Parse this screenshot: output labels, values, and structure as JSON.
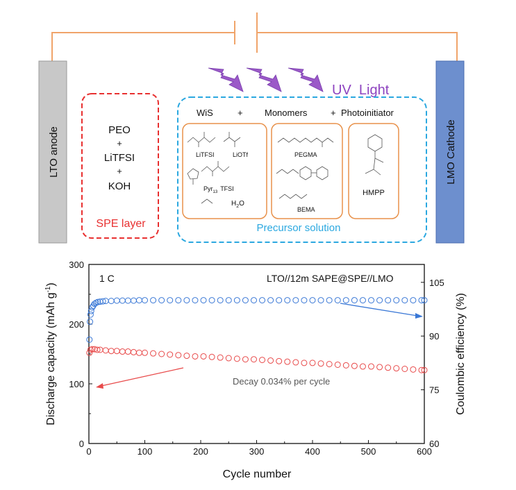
{
  "schematic": {
    "anode_label": "LTO anode",
    "cathode_label": "LMO Cathode",
    "uv_label": "UV  Light",
    "spe_box": {
      "lines": [
        "PEO",
        "+",
        "LiTFSI",
        "+",
        "KOH"
      ],
      "label": "SPE layer"
    },
    "precursor": {
      "header_wis": "WiS",
      "header_plus1": "+",
      "header_monomers": "Monomers",
      "header_plus2": "+",
      "header_photo": "Photoinitiator",
      "label": "Precursor solution",
      "wis_items": {
        "litfsi": "LiTFSI",
        "liotf": "LiOTf",
        "pyr_a": "Pyr",
        "pyr_sub": "13",
        "pyr_b": "TFSI",
        "h2o_a": "H",
        "h2o_sub": "2",
        "h2o_b": "O"
      },
      "monomer_items": {
        "pegma": "PEGMA",
        "bema": "BEMA"
      },
      "photo_items": {
        "hmpp": "HMPP"
      }
    },
    "colors": {
      "wire": "#f0a46a",
      "anode_fill": "#c8c8c8",
      "cathode_fill": "#6d8fce",
      "spe_border": "#e83030",
      "precursor_border": "#2ba8e0",
      "inner_box_border": "#e8914a",
      "uv": "#9b59c8"
    }
  },
  "chart_data": {
    "type": "scatter",
    "annotation_rate": "1 C",
    "annotation_cell": "LTO//12m SAPE@SPE//LMO",
    "annotation_decay": "Decay 0.034% per cycle",
    "xlabel": "Cycle number",
    "ylabel_left": "Discharge capacity (mAh g",
    "ylabel_left_sup": "-1",
    "ylabel_left_end": ")",
    "ylabel_right": "Coulombic efficiency (%)",
    "xlim": [
      0,
      600
    ],
    "ylim_left": [
      0,
      300
    ],
    "ylim_right": [
      60,
      110
    ],
    "x_ticks": [
      "0",
      "100",
      "200",
      "300",
      "400",
      "500",
      "600"
    ],
    "y_left_ticks": [
      "0",
      "100",
      "200",
      "300"
    ],
    "y_right_ticks": [
      "60",
      "75",
      "90",
      "105"
    ],
    "series": [
      {
        "axis": "left",
        "color": "#e84a4a",
        "x": [
          1,
          3,
          6,
          10,
          15,
          20,
          30,
          40,
          50,
          60,
          70,
          80,
          90,
          100,
          115,
          130,
          145,
          160,
          175,
          190,
          205,
          220,
          235,
          250,
          265,
          280,
          295,
          310,
          325,
          340,
          355,
          370,
          385,
          400,
          415,
          430,
          445,
          460,
          475,
          490,
          505,
          520,
          535,
          550,
          565,
          580,
          595,
          600
        ],
        "values": [
          152,
          157,
          158,
          158,
          157,
          157,
          156,
          155,
          155,
          154,
          154,
          153,
          152,
          152,
          151,
          150,
          149,
          148,
          147,
          146,
          146,
          145,
          144,
          143,
          142,
          141,
          141,
          140,
          139,
          138,
          137,
          136,
          135,
          135,
          134,
          133,
          132,
          131,
          130,
          129,
          129,
          128,
          127,
          126,
          125,
          124,
          123,
          123
        ]
      },
      {
        "axis": "right",
        "color": "#3a78d6",
        "x": [
          1,
          2,
          3,
          4,
          6,
          8,
          10,
          13,
          16,
          20,
          25,
          30,
          40,
          50,
          60,
          70,
          80,
          90,
          100,
          115,
          130,
          145,
          160,
          175,
          190,
          205,
          220,
          235,
          250,
          265,
          280,
          295,
          310,
          325,
          340,
          355,
          370,
          385,
          400,
          415,
          430,
          445,
          460,
          475,
          490,
          505,
          520,
          535,
          550,
          565,
          580,
          595,
          600
        ],
        "values": [
          89,
          94,
          96,
          97,
          98,
          98.5,
          99,
          99.3,
          99.5,
          99.6,
          99.7,
          99.8,
          99.8,
          99.9,
          99.9,
          99.9,
          99.9,
          100,
          100,
          100,
          100,
          100,
          100,
          100,
          100,
          100,
          100,
          100,
          100,
          100,
          100,
          100,
          100,
          100,
          100,
          100,
          100,
          100,
          100,
          100,
          100,
          100,
          100,
          100,
          100,
          100,
          100,
          100,
          100,
          100,
          100,
          100,
          100
        ]
      }
    ]
  }
}
